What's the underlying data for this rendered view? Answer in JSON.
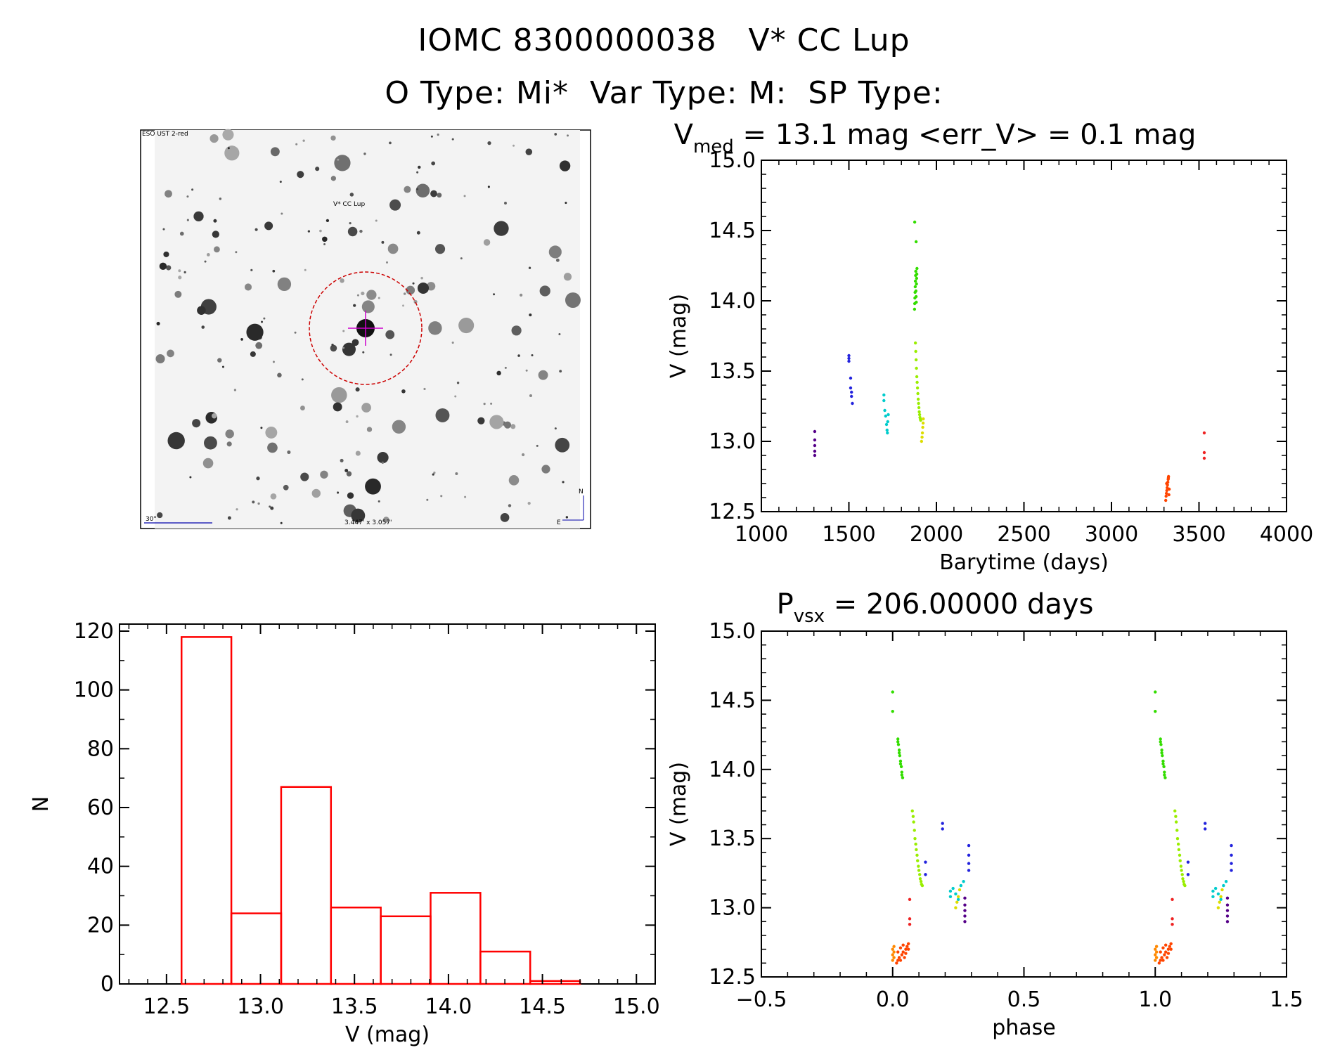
{
  "header": {
    "title_line1": "IOMC 8300000038   V* CC Lup",
    "title_line2": "O Type: Mi*  Var Type: M:  SP Type:"
  },
  "finder": {
    "survey_label": "ESO UST 2-red",
    "target_label": "V* CC Lup",
    "scale_label": "30\"",
    "size_label": "3.447' x 3.057'",
    "north_label": "N",
    "east_label": "E"
  },
  "colors": {
    "histogram": "#ff0000",
    "axes": "#000000",
    "finder_marker": "#cc0000",
    "crosshair": "#cc00cc"
  },
  "chart_data": [
    {
      "type": "scatter",
      "title": "V_med = 13.1 mag <err_V> = 0.1 mag",
      "title_parts": {
        "v": "V",
        "v_sub": "med",
        "rest": " = 13.1 mag <err_V> = 0.1 mag"
      },
      "xlabel": "Barytime (days)",
      "ylabel": "V (mag)",
      "xlim": [
        1000,
        4000
      ],
      "ylim": [
        15.0,
        12.5
      ],
      "xticks": [
        "1000",
        "1500",
        "2000",
        "2500",
        "3000",
        "3500",
        "4000"
      ],
      "yticks": [
        "12.5",
        "13.0",
        "13.5",
        "14.0",
        "14.5",
        "15.0"
      ],
      "color_coding": "time-ordered rainbow",
      "series": [
        {
          "color": "#550088",
          "x": [
            1305,
            1305,
            1305,
            1305,
            1305
          ],
          "y": [
            12.9,
            12.93,
            12.97,
            13.01,
            13.07
          ]
        },
        {
          "color": "#2222dd",
          "x": [
            1500,
            1500,
            1500,
            1510,
            1510,
            1515,
            1515,
            1520
          ],
          "y": [
            13.57,
            13.59,
            13.61,
            13.45,
            13.38,
            13.35,
            13.32,
            13.27
          ]
        },
        {
          "color": "#00cccc",
          "x": [
            1700,
            1700,
            1705,
            1710,
            1715,
            1718,
            1720,
            1722,
            1725
          ],
          "y": [
            13.33,
            13.29,
            13.22,
            13.18,
            13.12,
            13.08,
            13.06,
            13.14,
            13.19
          ]
        },
        {
          "color": "#33dd00",
          "x": [
            1875,
            1876,
            1877,
            1878,
            1879,
            1880,
            1881,
            1882,
            1883,
            1884,
            1885,
            1886,
            1887,
            1888,
            1889,
            1876,
            1884
          ],
          "y": [
            13.94,
            13.98,
            14.02,
            14.06,
            14.1,
            14.14,
            14.18,
            14.21,
            14.07,
            14.03,
            13.99,
            14.12,
            14.16,
            14.19,
            14.23,
            14.56,
            14.42
          ]
        },
        {
          "color": "#99ee00",
          "x": [
            1880,
            1882,
            1884,
            1886,
            1888,
            1890,
            1892,
            1894,
            1896,
            1898,
            1900,
            1902,
            1904,
            1906,
            1908,
            1910
          ],
          "y": [
            13.7,
            13.64,
            13.58,
            13.52,
            13.46,
            13.42,
            13.38,
            13.34,
            13.3,
            13.27,
            13.24,
            13.21,
            13.19,
            13.17,
            13.16,
            13.15
          ]
        },
        {
          "color": "#dddd00",
          "x": [
            1915,
            1918,
            1920,
            1922,
            1924,
            1925
          ],
          "y": [
            13.0,
            13.03,
            13.06,
            13.1,
            13.13,
            13.16
          ]
        },
        {
          "color": "#ff4400",
          "x": [
            3310,
            3312,
            3314,
            3316,
            3318,
            3320,
            3322,
            3324,
            3326,
            3328,
            3330,
            3315,
            3325
          ],
          "y": [
            12.58,
            12.61,
            12.63,
            12.65,
            12.67,
            12.69,
            12.71,
            12.73,
            12.75,
            12.62,
            12.66,
            12.7,
            12.74
          ]
        },
        {
          "color": "#ee2222",
          "x": [
            3530,
            3530,
            3530
          ],
          "y": [
            12.88,
            12.92,
            13.06
          ]
        }
      ]
    },
    {
      "type": "bar",
      "title": "",
      "xlabel": "V (mag)",
      "ylabel": "N",
      "xlim": [
        12.25,
        15.1
      ],
      "ylim": [
        0,
        120
      ],
      "xticks": [
        "12.5",
        "13.0",
        "13.5",
        "14.0",
        "14.5",
        "15.0"
      ],
      "yticks": [
        "0",
        "20",
        "40",
        "60",
        "80",
        "100",
        "120"
      ],
      "bin_edges": [
        12.58,
        12.845,
        13.11,
        13.375,
        13.64,
        13.905,
        14.17,
        14.435,
        14.7
      ],
      "counts": [
        118,
        24,
        67,
        26,
        23,
        31,
        11,
        1
      ],
      "style": "outline"
    },
    {
      "type": "scatter",
      "title": "P_vsx = 206.00000 days",
      "title_parts": {
        "p": "P",
        "p_sub": "vsx",
        "rest": " = 206.00000 days"
      },
      "xlabel": "phase",
      "ylabel": "V (mag)",
      "xlim": [
        -0.5,
        1.5
      ],
      "ylim": [
        15.0,
        12.5
      ],
      "xticks": [
        "−0.5",
        "0.0",
        "0.5",
        "1.0",
        "1.5"
      ],
      "yticks": [
        "12.5",
        "13.0",
        "13.5",
        "14.0",
        "14.5",
        "15.0"
      ],
      "phase_period_days": 206,
      "repeat_offset": 1.0,
      "series": [
        {
          "color": "#ff8800",
          "x": [
            0.0,
            0.0,
            0.0,
            0.005,
            0.005,
            0.005
          ],
          "y": [
            12.62,
            12.66,
            12.7,
            12.64,
            12.68,
            12.72
          ]
        },
        {
          "color": "#ff4400",
          "x": [
            0.015,
            0.02,
            0.025,
            0.03,
            0.035,
            0.04,
            0.045,
            0.05,
            0.055,
            0.06,
            0.02,
            0.03,
            0.04,
            0.05,
            0.06
          ],
          "y": [
            12.6,
            12.62,
            12.64,
            12.62,
            12.66,
            12.68,
            12.64,
            12.7,
            12.72,
            12.74,
            12.68,
            12.71,
            12.73,
            12.67,
            12.7
          ]
        },
        {
          "color": "#ee2222",
          "x": [
            0.065,
            0.065,
            0.065
          ],
          "y": [
            12.88,
            12.92,
            13.06
          ]
        },
        {
          "color": "#33dd00",
          "x": [
            0.0,
            0.0,
            0.02,
            0.022,
            0.025,
            0.027,
            0.03,
            0.033,
            0.035,
            0.038,
            0.02,
            0.025,
            0.03,
            0.035
          ],
          "y": [
            14.42,
            14.56,
            14.22,
            14.18,
            14.14,
            14.1,
            14.06,
            14.02,
            13.98,
            13.94,
            14.2,
            14.12,
            14.04,
            13.96
          ]
        },
        {
          "color": "#99ee00",
          "x": [
            0.075,
            0.078,
            0.08,
            0.083,
            0.085,
            0.088,
            0.09,
            0.093,
            0.095,
            0.098,
            0.1,
            0.103,
            0.105,
            0.108,
            0.11,
            0.113
          ],
          "y": [
            13.7,
            13.66,
            13.62,
            13.56,
            13.5,
            13.46,
            13.42,
            13.38,
            13.34,
            13.3,
            13.27,
            13.24,
            13.21,
            13.19,
            13.17,
            13.16
          ]
        },
        {
          "color": "#2222dd",
          "x": [
            0.125,
            0.125,
            0.19,
            0.19,
            0.29,
            0.29,
            0.29,
            0.29
          ],
          "y": [
            13.24,
            13.33,
            13.57,
            13.61,
            13.27,
            13.32,
            13.38,
            13.45
          ]
        },
        {
          "color": "#00cccc",
          "x": [
            0.22,
            0.22,
            0.23,
            0.24,
            0.25,
            0.26,
            0.27
          ],
          "y": [
            13.08,
            13.12,
            13.14,
            13.1,
            13.06,
            13.16,
            13.19
          ]
        },
        {
          "color": "#dddd00",
          "x": [
            0.24,
            0.245,
            0.25,
            0.255
          ],
          "y": [
            13.0,
            13.04,
            13.08,
            13.13
          ]
        },
        {
          "color": "#550088",
          "x": [
            0.275,
            0.275,
            0.275,
            0.275,
            0.275
          ],
          "y": [
            12.9,
            12.94,
            12.98,
            13.02,
            13.07
          ]
        }
      ]
    }
  ]
}
